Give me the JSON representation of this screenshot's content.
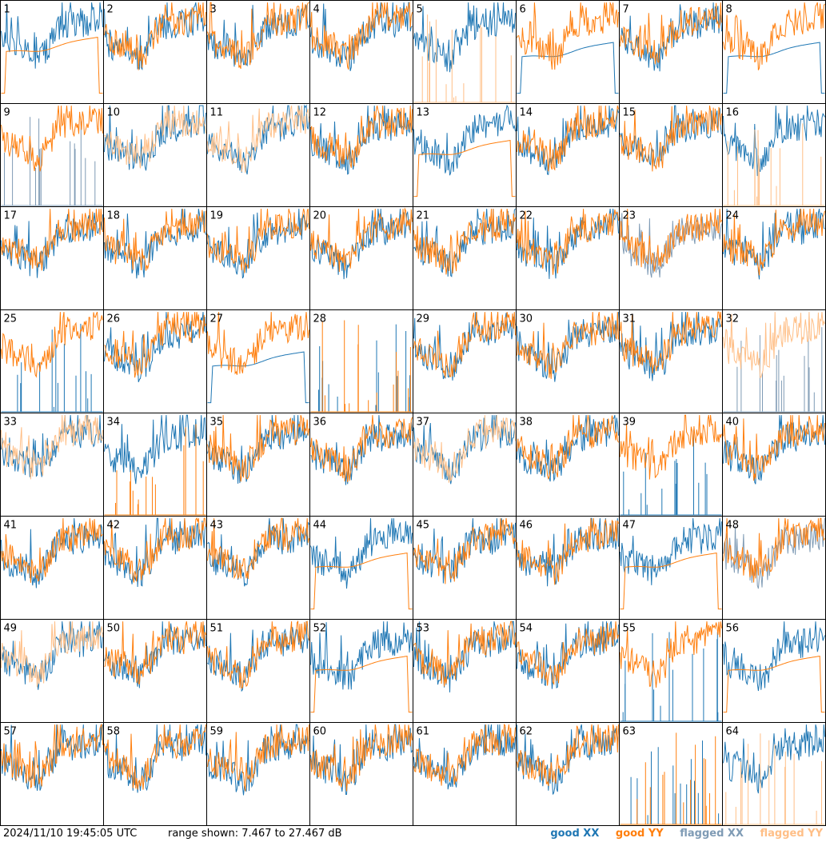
{
  "chart_data": {
    "type": "line",
    "panels": [
      {
        "label": "1",
        "xx": "good",
        "yy": "good",
        "yy_style": "smooth"
      },
      {
        "label": "2",
        "xx": "good",
        "yy": "good"
      },
      {
        "label": "3",
        "xx": "good",
        "yy": "good"
      },
      {
        "label": "4",
        "xx": "good",
        "yy": "good"
      },
      {
        "label": "5",
        "xx": "good",
        "yy": "flagged",
        "yy_style": "spikes"
      },
      {
        "label": "6",
        "xx": "good",
        "yy": "good",
        "xx_style": "smooth"
      },
      {
        "label": "7",
        "xx": "good",
        "yy": "good"
      },
      {
        "label": "8",
        "xx": "good",
        "yy": "good",
        "xx_style": "smooth"
      },
      {
        "label": "9",
        "xx": "flagged",
        "yy": "good",
        "xx_style": "spikes"
      },
      {
        "label": "10",
        "xx": "good",
        "yy": "flagged"
      },
      {
        "label": "11",
        "xx": "good",
        "yy": "flagged"
      },
      {
        "label": "12",
        "xx": "good",
        "yy": "good"
      },
      {
        "label": "13",
        "xx": "good",
        "yy": "good",
        "yy_style": "smooth"
      },
      {
        "label": "14",
        "xx": "good",
        "yy": "good"
      },
      {
        "label": "15",
        "xx": "good",
        "yy": "good"
      },
      {
        "label": "16",
        "xx": "good",
        "yy": "flagged",
        "yy_style": "spikes"
      },
      {
        "label": "17",
        "xx": "good",
        "yy": "good"
      },
      {
        "label": "18",
        "xx": "good",
        "yy": "good"
      },
      {
        "label": "19",
        "xx": "good",
        "yy": "good"
      },
      {
        "label": "20",
        "xx": "good",
        "yy": "good"
      },
      {
        "label": "21",
        "xx": "good",
        "yy": "good"
      },
      {
        "label": "22",
        "xx": "good",
        "yy": "good"
      },
      {
        "label": "23",
        "xx": "flagged",
        "yy": "good"
      },
      {
        "label": "24",
        "xx": "good",
        "yy": "good"
      },
      {
        "label": "25",
        "xx": "good",
        "yy": "good",
        "xx_style": "spikes"
      },
      {
        "label": "26",
        "xx": "good",
        "yy": "good"
      },
      {
        "label": "27",
        "xx": "good",
        "yy": "good",
        "xx_style": "smooth"
      },
      {
        "label": "28",
        "xx": "good",
        "yy": "good",
        "xx_style": "spikes",
        "yy_style": "spikes"
      },
      {
        "label": "29",
        "xx": "good",
        "yy": "good"
      },
      {
        "label": "30",
        "xx": "good",
        "yy": "good"
      },
      {
        "label": "31",
        "xx": "good",
        "yy": "good"
      },
      {
        "label": "32",
        "xx": "flagged",
        "yy": "flagged",
        "xx_style": "spikes"
      },
      {
        "label": "33",
        "xx": "good",
        "yy": "flagged"
      },
      {
        "label": "34",
        "xx": "good",
        "yy": "good",
        "yy_style": "spikes"
      },
      {
        "label": "35",
        "xx": "good",
        "yy": "good"
      },
      {
        "label": "36",
        "xx": "good",
        "yy": "good"
      },
      {
        "label": "37",
        "xx": "good",
        "yy": "flagged"
      },
      {
        "label": "38",
        "xx": "good",
        "yy": "good"
      },
      {
        "label": "39",
        "xx": "good",
        "yy": "good",
        "xx_style": "spikes"
      },
      {
        "label": "40",
        "xx": "good",
        "yy": "good"
      },
      {
        "label": "41",
        "xx": "good",
        "yy": "good"
      },
      {
        "label": "42",
        "xx": "good",
        "yy": "good"
      },
      {
        "label": "43",
        "xx": "good",
        "yy": "good"
      },
      {
        "label": "44",
        "xx": "good",
        "yy": "good",
        "yy_style": "smooth"
      },
      {
        "label": "45",
        "xx": "good",
        "yy": "good"
      },
      {
        "label": "46",
        "xx": "good",
        "yy": "good"
      },
      {
        "label": "47",
        "xx": "good",
        "yy": "good",
        "yy_style": "smooth"
      },
      {
        "label": "48",
        "xx": "flagged",
        "yy": "good"
      },
      {
        "label": "49",
        "xx": "good",
        "yy": "flagged"
      },
      {
        "label": "50",
        "xx": "good",
        "yy": "good"
      },
      {
        "label": "51",
        "xx": "good",
        "yy": "good"
      },
      {
        "label": "52",
        "xx": "good",
        "yy": "good",
        "yy_style": "smooth"
      },
      {
        "label": "53",
        "xx": "good",
        "yy": "good"
      },
      {
        "label": "54",
        "xx": "good",
        "yy": "good"
      },
      {
        "label": "55",
        "xx": "good",
        "yy": "good",
        "xx_style": "spikes"
      },
      {
        "label": "56",
        "xx": "good",
        "yy": "good",
        "yy_style": "smooth"
      },
      {
        "label": "57",
        "xx": "good",
        "yy": "good"
      },
      {
        "label": "58",
        "xx": "good",
        "yy": "good"
      },
      {
        "label": "59",
        "xx": "good",
        "yy": "good"
      },
      {
        "label": "60",
        "xx": "good",
        "yy": "good"
      },
      {
        "label": "61",
        "xx": "good",
        "yy": "good"
      },
      {
        "label": "62",
        "xx": "good",
        "yy": "good"
      },
      {
        "label": "63",
        "xx": "good",
        "yy": "good",
        "xx_style": "spikes",
        "yy_style": "spikes"
      },
      {
        "label": "64",
        "xx": "good",
        "yy": "flagged",
        "yy_style": "spikes"
      }
    ],
    "grid_columns": 8,
    "grid_rows": 8,
    "ylim": [
      7.467,
      27.467
    ],
    "yunit": "dB",
    "legend_placement": "bottom-right",
    "colors": {
      "good_xx": "#1f77b4",
      "good_yy": "#ff7f0e",
      "flagged_xx": "#7f9bb5",
      "flagged_yy": "#ffbf87",
      "panel_border": "#000000"
    }
  },
  "footer": {
    "timestamp": "2024/11/10 19:45:05 UTC",
    "range": "range shown: 7.467 to 27.467 dB",
    "legend": {
      "good_xx": "good XX",
      "good_yy": "good YY",
      "flagged_xx": "flagged XX",
      "flagged_yy": "flagged YY"
    }
  }
}
